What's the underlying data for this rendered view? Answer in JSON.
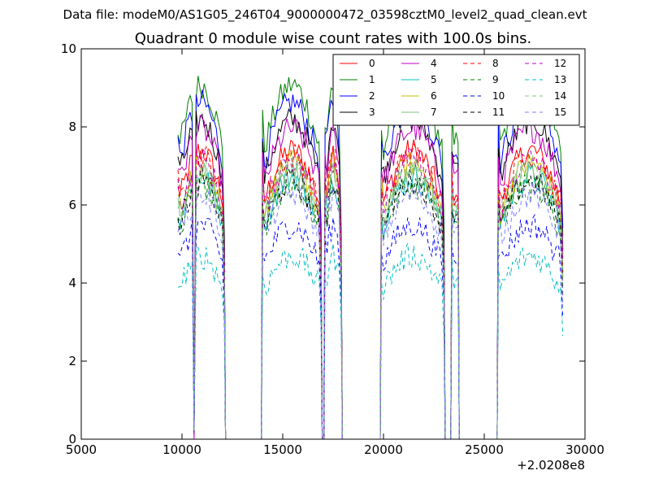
{
  "figure": {
    "suptitle": "Data file: modeM0/AS1G05_246T04_9000000472_03598cztM0_level2_quad_clean.evt",
    "title": "Quadrant 0 module wise count rates with 100.0s bins."
  },
  "chart_data": {
    "type": "line",
    "title": "Quadrant 0 module wise count rates with 100.0s bins.",
    "xlabel": "",
    "ylabel": "",
    "x_offset_label": "+2.0208e8",
    "xlim": [
      5000,
      30000
    ],
    "ylim": [
      0,
      10
    ],
    "x_ticks": [
      5000,
      10000,
      15000,
      20000,
      25000,
      30000
    ],
    "y_ticks": [
      0,
      2,
      4,
      6,
      8,
      10
    ],
    "grid": false,
    "legend_position": "top-right",
    "segments": [
      [
        9800,
        12100
      ],
      [
        14000,
        16900
      ],
      [
        17100,
        17900
      ],
      [
        19900,
        23000
      ],
      [
        23400,
        23700
      ],
      [
        25700,
        28900
      ]
    ],
    "dropouts": [
      10600,
      17000
    ],
    "series": [
      {
        "name": "0",
        "color": "#ff0000",
        "style": "solid",
        "level": 6.6
      },
      {
        "name": "1",
        "color": "#008000",
        "style": "solid",
        "level": 8.1
      },
      {
        "name": "2",
        "color": "#0000ff",
        "style": "solid",
        "level": 7.7
      },
      {
        "name": "3",
        "color": "#000000",
        "style": "solid",
        "level": 7.3
      },
      {
        "name": "4",
        "color": "#bf00bf",
        "style": "solid",
        "level": 7.1
      },
      {
        "name": "5",
        "color": "#00bfbf",
        "style": "solid",
        "level": 6.0
      },
      {
        "name": "6",
        "color": "#bfbf00",
        "style": "solid",
        "level": 6.3
      },
      {
        "name": "7",
        "color": "#7fbf7f",
        "style": "solid",
        "level": 6.1
      },
      {
        "name": "8",
        "color": "#ff0000",
        "style": "dashed",
        "level": 6.5
      },
      {
        "name": "9",
        "color": "#008000",
        "style": "dashed",
        "level": 5.8
      },
      {
        "name": "10",
        "color": "#0000ff",
        "style": "dashed",
        "level": 4.9
      },
      {
        "name": "11",
        "color": "#000000",
        "style": "dashed",
        "level": 5.9
      },
      {
        "name": "12",
        "color": "#bf00bf",
        "style": "dashed",
        "level": 6.4
      },
      {
        "name": "13",
        "color": "#00bfbf",
        "style": "dashed",
        "level": 4.2
      },
      {
        "name": "14",
        "color": "#7fbf7f",
        "style": "dashed",
        "level": 6.2
      },
      {
        "name": "15",
        "color": "#7f7fff",
        "style": "dashed",
        "level": 5.6
      }
    ]
  }
}
